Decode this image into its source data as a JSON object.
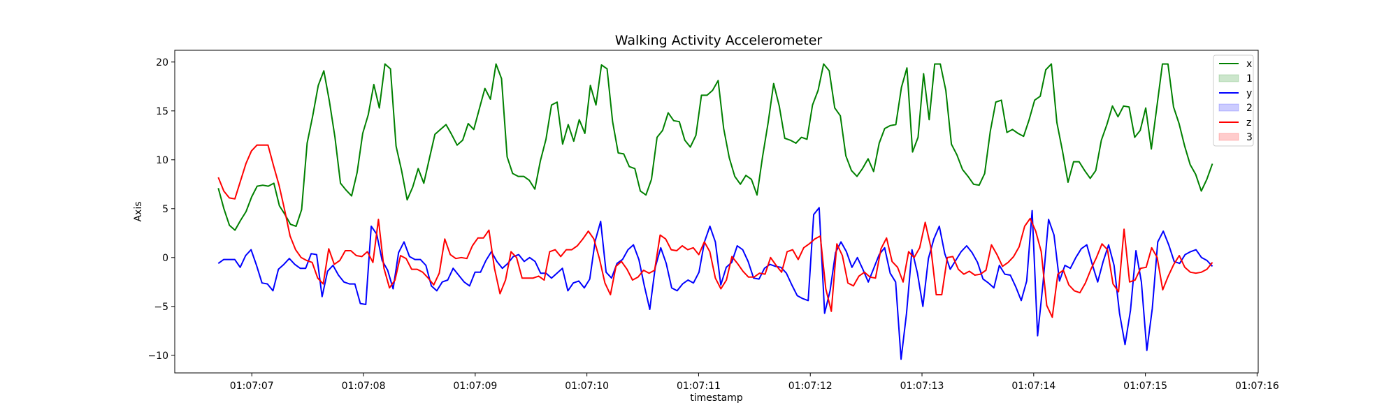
{
  "chart_data": {
    "type": "line",
    "title": "Walking Activity Accelerometer",
    "xlabel": "timestamp",
    "ylabel": "Axis",
    "x_ticks": [
      "01:07:07",
      "01:07:08",
      "01:07:09",
      "01:07:10",
      "01:07:11",
      "01:07:12",
      "01:07:13",
      "01:07:14",
      "01:07:15",
      "01:07:16"
    ],
    "y_ticks": [
      20,
      15,
      10,
      5,
      0,
      -5,
      -10
    ],
    "xlim": [
      "01:07:06.31",
      "01:07:16.01"
    ],
    "ylim": [
      -11.8,
      21.2
    ],
    "grid": false,
    "legend_position": "top-right",
    "legend": [
      {
        "label": "x",
        "kind": "line",
        "color": "#008000"
      },
      {
        "label": "1",
        "kind": "patch",
        "color": "#008000"
      },
      {
        "label": "y",
        "kind": "line",
        "color": "#0000ff"
      },
      {
        "label": "2",
        "kind": "patch",
        "color": "#0000ff"
      },
      {
        "label": "z",
        "kind": "line",
        "color": "#ff0000"
      },
      {
        "label": "3",
        "kind": "patch",
        "color": "#ff0000"
      }
    ],
    "x_start": "01:07:06.70",
    "x_end": "01:07:15.60",
    "series": [
      {
        "name": "x",
        "color": "#008000",
        "values": [
          7.1,
          5.0,
          3.3,
          2.8,
          3.8,
          4.7,
          6.2,
          7.3,
          7.4,
          7.3,
          7.6,
          5.3,
          4.4,
          3.4,
          3.2,
          4.9,
          11.7,
          14.5,
          17.6,
          19.1,
          16.0,
          12.3,
          7.6,
          6.9,
          6.3,
          8.7,
          12.7,
          14.6,
          17.7,
          15.3,
          19.8,
          19.3,
          11.4,
          8.9,
          5.9,
          7.2,
          9.1,
          7.6,
          10.1,
          12.6,
          13.1,
          13.6,
          12.6,
          11.5,
          12.0,
          13.7,
          13.1,
          15.2,
          17.3,
          16.2,
          19.8,
          18.3,
          10.3,
          8.6,
          8.3,
          8.3,
          7.9,
          7.0,
          9.9,
          12.1,
          15.6,
          15.9,
          11.6,
          13.6,
          11.9,
          14.1,
          12.7,
          17.6,
          15.6,
          19.7,
          19.3,
          13.9,
          10.7,
          10.6,
          9.3,
          9.1,
          6.8,
          6.4,
          8.0,
          12.3,
          13.0,
          14.8,
          14.0,
          13.9,
          12.0,
          11.3,
          12.5,
          16.6,
          16.6,
          17.1,
          18.1,
          13.2,
          10.2,
          8.3,
          7.5,
          8.4,
          8.0,
          6.4,
          10.3,
          13.8,
          17.8,
          15.5,
          12.2,
          12.0,
          11.7,
          12.3,
          12.1,
          15.6,
          17.1,
          19.8,
          19.1,
          15.3,
          14.5,
          10.4,
          8.9,
          8.3,
          9.1,
          10.1,
          8.8,
          11.7,
          13.2,
          13.5,
          13.6,
          17.4,
          19.4,
          10.8,
          12.3,
          18.8,
          14.1,
          19.8,
          19.8,
          17.1,
          11.6,
          10.5,
          9.0,
          8.3,
          7.5,
          7.4,
          8.6,
          12.9,
          15.9,
          16.1,
          12.8,
          13.1,
          12.7,
          12.4,
          14.1,
          16.1,
          16.5,
          19.2,
          19.8,
          13.8,
          10.9,
          7.7,
          9.8,
          9.8,
          8.9,
          8.1,
          8.9,
          12.0,
          13.6,
          15.5,
          14.4,
          15.5,
          15.4,
          12.3,
          13.0,
          15.3,
          11.1,
          15.4,
          19.8,
          19.8,
          15.4,
          13.7,
          11.4,
          9.5,
          8.5,
          6.8,
          8.0,
          9.6
        ]
      },
      {
        "name": "y",
        "color": "#0000ff",
        "values": [
          -0.6,
          -0.2,
          -0.2,
          -0.2,
          -1.0,
          0.2,
          0.8,
          -0.8,
          -2.6,
          -2.7,
          -3.4,
          -1.2,
          -0.7,
          -0.1,
          -0.7,
          -1.1,
          -1.1,
          0.4,
          0.3,
          -4.0,
          -1.4,
          -0.8,
          -1.8,
          -2.5,
          -2.7,
          -2.7,
          -4.7,
          -4.8,
          3.2,
          2.4,
          -0.3,
          -1.3,
          -3.2,
          0.5,
          1.6,
          0.1,
          -0.2,
          -0.2,
          -0.8,
          -2.9,
          -3.4,
          -2.5,
          -2.3,
          -1.1,
          -1.8,
          -2.5,
          -2.9,
          -1.5,
          -1.5,
          -0.3,
          0.6,
          -0.4,
          -1.1,
          -0.6,
          0.1,
          0.3,
          -0.4,
          0.0,
          -0.4,
          -1.6,
          -1.6,
          -2.1,
          -1.6,
          -1.1,
          -3.4,
          -2.6,
          -2.4,
          -3.1,
          -2.2,
          1.7,
          3.7,
          -1.5,
          -2.1,
          -0.6,
          -0.2,
          0.8,
          1.3,
          -0.2,
          -2.9,
          -5.3,
          -1.0,
          1.0,
          -0.6,
          -3.1,
          -3.4,
          -2.7,
          -2.3,
          -2.6,
          -1.5,
          1.6,
          3.2,
          1.6,
          -2.8,
          -1.0,
          -0.5,
          1.2,
          0.8,
          -0.4,
          -2.1,
          -2.2,
          -1.1,
          -0.7,
          -0.9,
          -1.0,
          -1.6,
          -2.8,
          -3.9,
          -4.2,
          -4.4,
          4.4,
          5.1,
          -5.7,
          -3.4,
          0.5,
          1.6,
          0.6,
          -1.0,
          0.0,
          -1.2,
          -2.5,
          -1.1,
          0.3,
          1.0,
          -1.6,
          -2.5,
          -10.4,
          -5.7,
          0.8,
          -1.6,
          -5.0,
          -0.1,
          1.9,
          3.2,
          0.4,
          -1.2,
          -0.3,
          0.6,
          1.2,
          0.5,
          -0.5,
          -2.2,
          -2.6,
          -3.1,
          -0.8,
          -1.7,
          -1.8,
          -3.0,
          -4.4,
          -2.4,
          4.8,
          -8.0,
          -2.6,
          3.9,
          2.3,
          -2.4,
          -0.8,
          -1.1,
          0.0,
          0.9,
          1.3,
          -0.7,
          -2.5,
          -0.4,
          1.3,
          -0.8,
          -5.7,
          -8.9,
          -5.4,
          0.7,
          -2.5,
          -9.5,
          -5.2,
          1.6,
          2.7,
          1.3,
          -0.4,
          -0.6,
          0.3,
          0.6,
          0.8,
          0.0,
          -0.3,
          -0.9
        ]
      },
      {
        "name": "z",
        "color": "#ff0000",
        "values": [
          8.2,
          6.8,
          6.1,
          6.0,
          7.8,
          9.6,
          10.9,
          11.5,
          11.5,
          11.5,
          9.4,
          7.4,
          4.9,
          2.2,
          0.8,
          0.0,
          -0.3,
          -0.5,
          -2.1,
          -2.7,
          0.9,
          -0.7,
          -0.3,
          0.7,
          0.7,
          0.2,
          0.1,
          0.6,
          -0.5,
          3.9,
          -1.1,
          -3.1,
          -2.3,
          0.2,
          -0.1,
          -1.2,
          -1.2,
          -1.5,
          -2.1,
          -2.8,
          -1.6,
          1.9,
          0.3,
          -0.1,
          0.0,
          -0.1,
          1.2,
          2.0,
          2.0,
          2.8,
          -1.1,
          -3.7,
          -2.3,
          0.6,
          0.0,
          -2.1,
          -2.1,
          -2.1,
          -1.9,
          -2.3,
          0.6,
          0.8,
          0.1,
          0.8,
          0.8,
          1.2,
          1.9,
          2.7,
          1.9,
          -0.1,
          -2.6,
          -3.8,
          -0.9,
          -0.4,
          -1.2,
          -2.3,
          -2.0,
          -1.3,
          -1.6,
          -1.3,
          2.3,
          1.9,
          0.8,
          0.7,
          1.2,
          0.8,
          1.0,
          0.3,
          1.6,
          0.6,
          -2.1,
          -3.2,
          -2.3,
          0.1,
          -0.6,
          -1.4,
          -2.0,
          -2.0,
          -1.6,
          -1.7,
          0.0,
          -0.8,
          -1.5,
          0.6,
          0.8,
          -0.2,
          1.0,
          1.4,
          1.9,
          2.2,
          -3.2,
          -5.5,
          1.4,
          0.2,
          -2.6,
          -2.9,
          -1.9,
          -1.5,
          -2.0,
          -2.1,
          0.9,
          2.0,
          -0.4,
          -1.0,
          -2.5,
          0.6,
          0.0,
          1.0,
          3.6,
          1.1,
          -3.8,
          -3.8,
          0.0,
          0.1,
          -1.2,
          -1.7,
          -1.4,
          -1.8,
          -1.7,
          -1.3,
          1.3,
          0.3,
          -0.9,
          -0.5,
          0.1,
          1.1,
          3.2,
          4.0,
          2.7,
          0.6,
          -4.9,
          -6.1,
          -1.7,
          -1.3,
          -2.8,
          -3.4,
          -3.6,
          -2.6,
          -1.2,
          0.0,
          1.4,
          0.8,
          -2.7,
          -3.5,
          2.9,
          -2.5,
          -2.3,
          -1.1,
          -1.0,
          1.0,
          0.0,
          -3.3,
          -1.9,
          -0.7,
          0.2,
          -1.0,
          -1.5,
          -1.6,
          -1.5,
          -1.2,
          -0.5
        ]
      }
    ]
  }
}
